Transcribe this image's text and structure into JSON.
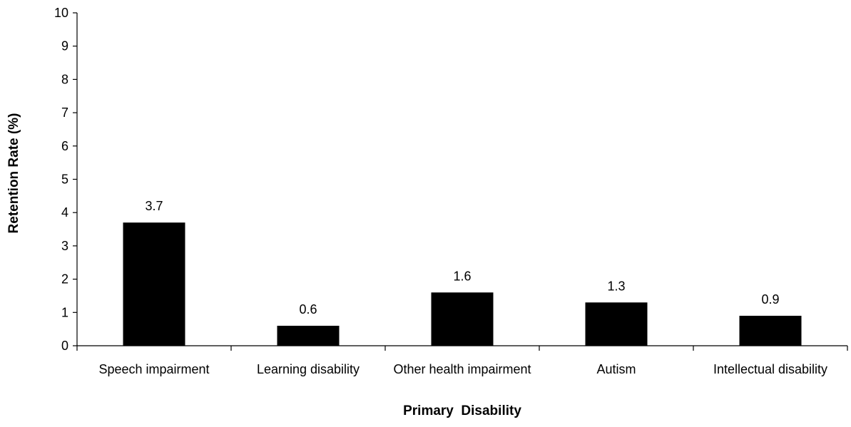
{
  "chart_data": {
    "type": "bar",
    "title": "",
    "xlabel": "Primary  Disability",
    "ylabel": "Retention Rate (%)",
    "categories": [
      "Speech impairment",
      "Learning disability",
      "Other health impairment",
      "Autism",
      "Intellectual disability"
    ],
    "values": [
      3.7,
      0.6,
      1.6,
      1.3,
      0.9
    ],
    "data_labels": [
      "3.7",
      "0.6",
      "1.6",
      "1.3",
      "0.9"
    ],
    "ylim": [
      0,
      10
    ],
    "yticks": [
      0,
      1,
      2,
      3,
      4,
      5,
      6,
      7,
      8,
      9,
      10
    ],
    "grid": false,
    "legend": "none",
    "bar_color": "#000000"
  }
}
